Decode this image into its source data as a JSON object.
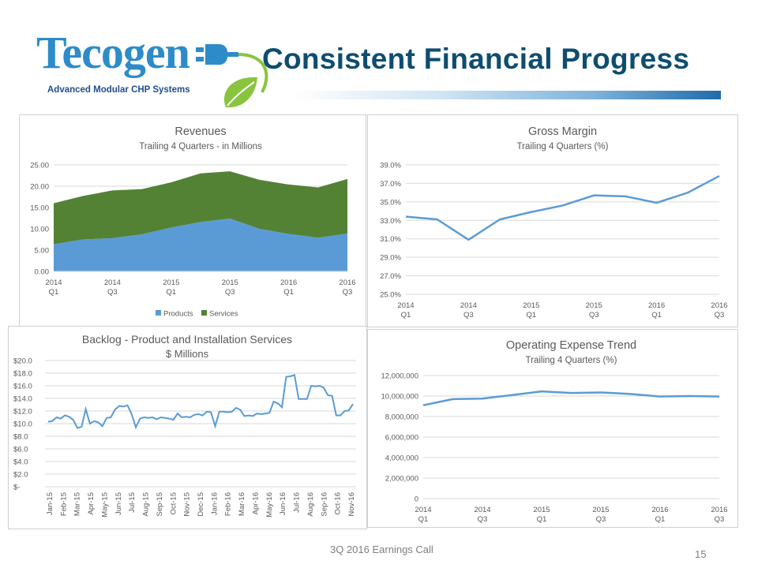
{
  "logo": {
    "name": "Tecogen",
    "tagline": "Advanced Modular CHP Systems"
  },
  "title": "Consistent Financial Progress",
  "footer": {
    "text": "3Q 2016  Earnings Call",
    "page_number": "15"
  },
  "colors": {
    "title": "#0e4d6f",
    "line": "#5b9bd5",
    "products": "#5b9bd5",
    "services": "#548235",
    "grid": "#d9d9d9",
    "text": "#595959"
  },
  "chart_data": [
    {
      "id": "revenues",
      "type": "area",
      "title": "Revenues",
      "subtitle": "Trailing 4 Quarters - in Millions",
      "categories": [
        "2014 Q1",
        "2014 Q2",
        "2014 Q3",
        "2014 Q4",
        "2015 Q1",
        "2015 Q2",
        "2015 Q3",
        "2015 Q4",
        "2016 Q1",
        "2016 Q2",
        "2016 Q3"
      ],
      "x_tick_labels": [
        {
          "year": "2014",
          "q": "Q1"
        },
        {
          "year": "2014",
          "q": "Q3"
        },
        {
          "year": "2015",
          "q": "Q1"
        },
        {
          "year": "2015",
          "q": "Q3"
        },
        {
          "year": "2016",
          "q": "Q1"
        },
        {
          "year": "2016",
          "q": "Q3"
        }
      ],
      "y_tick_labels": [
        "0.00",
        "5.00",
        "10.00",
        "15.00",
        "20.00",
        "25.00"
      ],
      "ylim": [
        0,
        25
      ],
      "stacked": true,
      "series": [
        {
          "name": "Products",
          "color": "#5b9bd5",
          "values": [
            6.4,
            7.5,
            7.8,
            8.7,
            10.3,
            11.6,
            12.4,
            10.0,
            8.8,
            7.9,
            8.9
          ]
        },
        {
          "name": "Services",
          "color": "#548235",
          "values": [
            9.6,
            10.2,
            11.2,
            10.6,
            10.6,
            11.4,
            11.1,
            11.5,
            11.6,
            11.8,
            12.8
          ]
        }
      ],
      "legend_position": "bottom",
      "grid": true
    },
    {
      "id": "margin",
      "type": "line",
      "title": "Gross Margin",
      "subtitle": "Trailing 4 Quarters (%)",
      "categories": [
        "2014 Q1",
        "2014 Q2",
        "2014 Q3",
        "2014 Q4",
        "2015 Q1",
        "2015 Q2",
        "2015 Q3",
        "2015 Q4",
        "2016 Q1",
        "2016 Q2",
        "2016 Q3"
      ],
      "x_tick_labels": [
        {
          "year": "2014",
          "q": "Q1"
        },
        {
          "year": "2014",
          "q": "Q3"
        },
        {
          "year": "2015",
          "q": "Q1"
        },
        {
          "year": "2015",
          "q": "Q3"
        },
        {
          "year": "2016",
          "q": "Q1"
        },
        {
          "year": "2016",
          "q": "Q3"
        }
      ],
      "y_tick_labels": [
        "25.0%",
        "27.0%",
        "29.0%",
        "31.0%",
        "33.0%",
        "35.0%",
        "37.0%",
        "39.0%"
      ],
      "ylim": [
        25,
        39
      ],
      "values": [
        33.4,
        33.1,
        30.9,
        33.1,
        33.9,
        34.6,
        35.7,
        35.6,
        34.9,
        36.0,
        37.8
      ],
      "grid": true
    },
    {
      "id": "backlog",
      "type": "line",
      "title": "Backlog - Product and Installation Services",
      "subtitle": "$ Millions",
      "x_tick_labels": [
        "Jan-15",
        "Feb-15",
        "Mar-15",
        "Apr-15",
        "May-15",
        "Jun-15",
        "Jul-15",
        "Aug-15",
        "Sep-15",
        "Oct-15",
        "Nov-15",
        "Dec-15",
        "Jan-16",
        "Feb-16",
        "Mar-16",
        "Apr-16",
        "May-16",
        "Jun-16",
        "Jul-16",
        "Aug-16",
        "Sep-16",
        "Oct-16",
        "Nov-16"
      ],
      "y_tick_labels": [
        "$-",
        "$2.0",
        "$4.0",
        "$6.0",
        "$8.0",
        "$10.0",
        "$12.0",
        "$14.0",
        "$16.0",
        "$18.0",
        "$20.0"
      ],
      "ylim": [
        0,
        20
      ],
      "values": [
        10.3,
        10.4,
        11.0,
        10.8,
        11.3,
        11.1,
        10.6,
        9.3,
        9.5,
        12.3,
        10.0,
        10.4,
        10.2,
        9.6,
        10.9,
        11.0,
        12.2,
        12.8,
        12.7,
        12.9,
        11.5,
        9.4,
        10.8,
        11.0,
        10.9,
        11.0,
        10.7,
        11.0,
        10.9,
        10.8,
        10.6,
        11.6,
        11.0,
        11.1,
        11.0,
        11.4,
        11.5,
        11.3,
        11.9,
        11.8,
        9.6,
        11.9,
        11.9,
        11.8,
        11.9,
        12.5,
        12.2,
        11.2,
        11.3,
        11.2,
        11.6,
        11.5,
        11.6,
        11.7,
        13.5,
        13.2,
        12.6,
        17.4,
        17.5,
        17.7,
        13.9,
        13.9,
        13.9,
        16.0,
        15.9,
        16.0,
        15.7,
        14.5,
        14.4,
        11.3,
        11.3,
        12.0,
        12.1,
        13.1
      ],
      "grid": true
    },
    {
      "id": "opex",
      "type": "line",
      "title": "Operating Expense Trend",
      "subtitle": "Trailing 4 Quarters (%)",
      "categories": [
        "2014 Q1",
        "2014 Q2",
        "2014 Q3",
        "2014 Q4",
        "2015 Q1",
        "2015 Q2",
        "2015 Q3",
        "2015 Q4",
        "2016 Q1",
        "2016 Q2",
        "2016 Q3"
      ],
      "x_tick_labels": [
        {
          "year": "2014",
          "q": "Q1"
        },
        {
          "year": "2014",
          "q": "Q3"
        },
        {
          "year": "2015",
          "q": "Q1"
        },
        {
          "year": "2015",
          "q": "Q3"
        },
        {
          "year": "2016",
          "q": "Q1"
        },
        {
          "year": "2016",
          "q": "Q3"
        }
      ],
      "y_tick_labels": [
        "0",
        "2,000,000",
        "4,000,000",
        "6,000,000",
        "8,000,000",
        "10,000,000",
        "12,000,000"
      ],
      "ylim": [
        0,
        12000000
      ],
      "values": [
        9100000,
        9700000,
        9750000,
        10100000,
        10450000,
        10300000,
        10350000,
        10200000,
        9950000,
        10000000,
        9950000
      ],
      "grid": true
    }
  ]
}
